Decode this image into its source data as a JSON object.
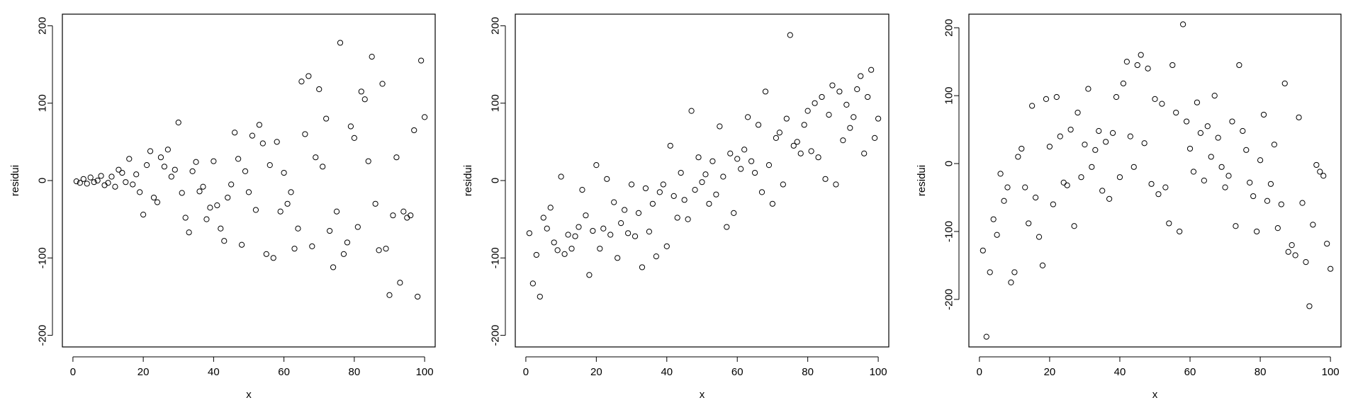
{
  "chart_data": [
    {
      "type": "scatter",
      "xlabel": "x",
      "ylabel": "residui",
      "xlim": [
        -3,
        103
      ],
      "ylim": [
        -215,
        215
      ],
      "xticks": [
        0,
        20,
        40,
        60,
        80,
        100
      ],
      "yticks": [
        -200,
        -100,
        0,
        100,
        200
      ],
      "grid": false,
      "points": [
        [
          1,
          -1
        ],
        [
          2,
          -3
        ],
        [
          3,
          2
        ],
        [
          4,
          -4
        ],
        [
          5,
          4
        ],
        [
          6,
          -2
        ],
        [
          7,
          0
        ],
        [
          8,
          6
        ],
        [
          9,
          -6
        ],
        [
          10,
          -3
        ],
        [
          11,
          5
        ],
        [
          12,
          -8
        ],
        [
          13,
          14
        ],
        [
          14,
          10
        ],
        [
          15,
          -2
        ],
        [
          16,
          28
        ],
        [
          17,
          -5
        ],
        [
          18,
          8
        ],
        [
          19,
          -15
        ],
        [
          20,
          -44
        ],
        [
          21,
          20
        ],
        [
          22,
          38
        ],
        [
          23,
          -22
        ],
        [
          24,
          -28
        ],
        [
          25,
          30
        ],
        [
          26,
          18
        ],
        [
          27,
          40
        ],
        [
          28,
          5
        ],
        [
          29,
          14
        ],
        [
          30,
          75
        ],
        [
          31,
          -16
        ],
        [
          32,
          -48
        ],
        [
          33,
          -67
        ],
        [
          34,
          12
        ],
        [
          35,
          24
        ],
        [
          36,
          -14
        ],
        [
          37,
          -8
        ],
        [
          38,
          -50
        ],
        [
          39,
          -35
        ],
        [
          40,
          25
        ],
        [
          41,
          -32
        ],
        [
          42,
          -62
        ],
        [
          43,
          -78
        ],
        [
          44,
          -22
        ],
        [
          45,
          -5
        ],
        [
          46,
          62
        ],
        [
          47,
          28
        ],
        [
          48,
          -83
        ],
        [
          49,
          12
        ],
        [
          50,
          -15
        ],
        [
          51,
          58
        ],
        [
          52,
          -38
        ],
        [
          53,
          72
        ],
        [
          54,
          48
        ],
        [
          55,
          -95
        ],
        [
          56,
          20
        ],
        [
          57,
          -100
        ],
        [
          58,
          50
        ],
        [
          59,
          -40
        ],
        [
          60,
          10
        ],
        [
          61,
          -30
        ],
        [
          62,
          -15
        ],
        [
          63,
          -88
        ],
        [
          64,
          -62
        ],
        [
          65,
          128
        ],
        [
          66,
          60
        ],
        [
          67,
          135
        ],
        [
          68,
          -85
        ],
        [
          69,
          30
        ],
        [
          70,
          118
        ],
        [
          71,
          18
        ],
        [
          72,
          80
        ],
        [
          73,
          -65
        ],
        [
          74,
          -112
        ],
        [
          75,
          -40
        ],
        [
          76,
          178
        ],
        [
          77,
          -95
        ],
        [
          78,
          -80
        ],
        [
          79,
          70
        ],
        [
          80,
          55
        ],
        [
          81,
          -60
        ],
        [
          82,
          115
        ],
        [
          83,
          105
        ],
        [
          84,
          25
        ],
        [
          85,
          160
        ],
        [
          86,
          -30
        ],
        [
          87,
          -90
        ],
        [
          88,
          125
        ],
        [
          89,
          -88
        ],
        [
          90,
          -148
        ],
        [
          91,
          -45
        ],
        [
          92,
          30
        ],
        [
          93,
          -132
        ],
        [
          94,
          -40
        ],
        [
          95,
          -48
        ],
        [
          96,
          -45
        ],
        [
          97,
          65
        ],
        [
          98,
          -150
        ],
        [
          99,
          155
        ],
        [
          100,
          82
        ]
      ]
    },
    {
      "type": "scatter",
      "xlabel": "x",
      "ylabel": "residui",
      "xlim": [
        -3,
        103
      ],
      "ylim": [
        -215,
        215
      ],
      "xticks": [
        0,
        20,
        40,
        60,
        80,
        100
      ],
      "yticks": [
        -200,
        -100,
        0,
        100,
        200
      ],
      "grid": false,
      "points": [
        [
          1,
          -68
        ],
        [
          2,
          -133
        ],
        [
          3,
          -96
        ],
        [
          4,
          -150
        ],
        [
          5,
          -48
        ],
        [
          6,
          -62
        ],
        [
          7,
          -35
        ],
        [
          8,
          -80
        ],
        [
          9,
          -90
        ],
        [
          10,
          5
        ],
        [
          11,
          -95
        ],
        [
          12,
          -70
        ],
        [
          13,
          -88
        ],
        [
          14,
          -72
        ],
        [
          15,
          -60
        ],
        [
          16,
          -12
        ],
        [
          17,
          -45
        ],
        [
          18,
          -122
        ],
        [
          19,
          -65
        ],
        [
          20,
          20
        ],
        [
          21,
          -88
        ],
        [
          22,
          -62
        ],
        [
          23,
          2
        ],
        [
          24,
          -70
        ],
        [
          25,
          -28
        ],
        [
          26,
          -100
        ],
        [
          27,
          -55
        ],
        [
          28,
          -38
        ],
        [
          29,
          -68
        ],
        [
          30,
          -5
        ],
        [
          31,
          -72
        ],
        [
          32,
          -42
        ],
        [
          33,
          -112
        ],
        [
          34,
          -10
        ],
        [
          35,
          -66
        ],
        [
          36,
          -30
        ],
        [
          37,
          -98
        ],
        [
          38,
          -15
        ],
        [
          39,
          -5
        ],
        [
          40,
          -85
        ],
        [
          41,
          45
        ],
        [
          42,
          -20
        ],
        [
          43,
          -48
        ],
        [
          44,
          10
        ],
        [
          45,
          -25
        ],
        [
          46,
          -50
        ],
        [
          47,
          90
        ],
        [
          48,
          -12
        ],
        [
          49,
          30
        ],
        [
          50,
          -2
        ],
        [
          51,
          8
        ],
        [
          52,
          -30
        ],
        [
          53,
          25
        ],
        [
          54,
          -18
        ],
        [
          55,
          70
        ],
        [
          56,
          5
        ],
        [
          57,
          -60
        ],
        [
          58,
          35
        ],
        [
          59,
          -42
        ],
        [
          60,
          28
        ],
        [
          61,
          15
        ],
        [
          62,
          40
        ],
        [
          63,
          82
        ],
        [
          64,
          25
        ],
        [
          65,
          10
        ],
        [
          66,
          72
        ],
        [
          67,
          -15
        ],
        [
          68,
          115
        ],
        [
          69,
          20
        ],
        [
          70,
          -30
        ],
        [
          71,
          55
        ],
        [
          72,
          62
        ],
        [
          73,
          -5
        ],
        [
          74,
          80
        ],
        [
          75,
          188
        ],
        [
          76,
          45
        ],
        [
          77,
          50
        ],
        [
          78,
          35
        ],
        [
          79,
          72
        ],
        [
          80,
          90
        ],
        [
          81,
          38
        ],
        [
          82,
          100
        ],
        [
          83,
          30
        ],
        [
          84,
          108
        ],
        [
          85,
          2
        ],
        [
          86,
          85
        ],
        [
          87,
          123
        ],
        [
          88,
          -5
        ],
        [
          89,
          115
        ],
        [
          90,
          52
        ],
        [
          91,
          98
        ],
        [
          92,
          68
        ],
        [
          93,
          82
        ],
        [
          94,
          118
        ],
        [
          95,
          135
        ],
        [
          96,
          35
        ],
        [
          97,
          108
        ],
        [
          98,
          143
        ],
        [
          99,
          55
        ],
        [
          100,
          80
        ]
      ]
    },
    {
      "type": "scatter",
      "xlabel": "x",
      "ylabel": "residui",
      "xlim": [
        -3,
        103
      ],
      "ylim": [
        -270,
        220
      ],
      "xticks": [
        0,
        20,
        40,
        60,
        80,
        100
      ],
      "yticks": [
        -200,
        -100,
        0,
        100,
        200
      ],
      "grid": false,
      "points": [
        [
          1,
          -128
        ],
        [
          2,
          -255
        ],
        [
          3,
          -160
        ],
        [
          4,
          -82
        ],
        [
          5,
          -105
        ],
        [
          6,
          -15
        ],
        [
          7,
          -55
        ],
        [
          8,
          -35
        ],
        [
          9,
          -175
        ],
        [
          10,
          -160
        ],
        [
          11,
          10
        ],
        [
          12,
          22
        ],
        [
          13,
          -35
        ],
        [
          14,
          -88
        ],
        [
          15,
          85
        ],
        [
          16,
          -50
        ],
        [
          17,
          -108
        ],
        [
          18,
          -150
        ],
        [
          19,
          95
        ],
        [
          20,
          25
        ],
        [
          21,
          -60
        ],
        [
          22,
          98
        ],
        [
          23,
          40
        ],
        [
          24,
          -28
        ],
        [
          25,
          -32
        ],
        [
          26,
          50
        ],
        [
          27,
          -92
        ],
        [
          28,
          75
        ],
        [
          29,
          -20
        ],
        [
          30,
          28
        ],
        [
          31,
          110
        ],
        [
          32,
          -5
        ],
        [
          33,
          20
        ],
        [
          34,
          48
        ],
        [
          35,
          -40
        ],
        [
          36,
          32
        ],
        [
          37,
          -52
        ],
        [
          38,
          45
        ],
        [
          39,
          98
        ],
        [
          40,
          -20
        ],
        [
          41,
          118
        ],
        [
          42,
          150
        ],
        [
          43,
          40
        ],
        [
          44,
          -5
        ],
        [
          45,
          145
        ],
        [
          46,
          160
        ],
        [
          47,
          30
        ],
        [
          48,
          140
        ],
        [
          49,
          -30
        ],
        [
          50,
          95
        ],
        [
          51,
          -45
        ],
        [
          52,
          88
        ],
        [
          53,
          -35
        ],
        [
          54,
          -88
        ],
        [
          55,
          145
        ],
        [
          56,
          75
        ],
        [
          57,
          -100
        ],
        [
          58,
          205
        ],
        [
          59,
          62
        ],
        [
          60,
          22
        ],
        [
          61,
          -12
        ],
        [
          62,
          90
        ],
        [
          63,
          45
        ],
        [
          64,
          -25
        ],
        [
          65,
          55
        ],
        [
          66,
          10
        ],
        [
          67,
          100
        ],
        [
          68,
          38
        ],
        [
          69,
          -5
        ],
        [
          70,
          -35
        ],
        [
          71,
          -18
        ],
        [
          72,
          62
        ],
        [
          73,
          -92
        ],
        [
          74,
          145
        ],
        [
          75,
          48
        ],
        [
          76,
          20
        ],
        [
          77,
          -28
        ],
        [
          78,
          -48
        ],
        [
          79,
          -100
        ],
        [
          80,
          5
        ],
        [
          81,
          72
        ],
        [
          82,
          -55
        ],
        [
          83,
          -30
        ],
        [
          84,
          28
        ],
        [
          85,
          -95
        ],
        [
          86,
          -60
        ],
        [
          87,
          118
        ],
        [
          88,
          -130
        ],
        [
          89,
          -120
        ],
        [
          90,
          -135
        ],
        [
          91,
          68
        ],
        [
          92,
          -58
        ],
        [
          93,
          -145
        ],
        [
          94,
          -210
        ],
        [
          95,
          -90
        ],
        [
          96,
          -2
        ],
        [
          97,
          -12
        ],
        [
          98,
          -18
        ],
        [
          99,
          -118
        ],
        [
          100,
          -155
        ]
      ]
    }
  ]
}
